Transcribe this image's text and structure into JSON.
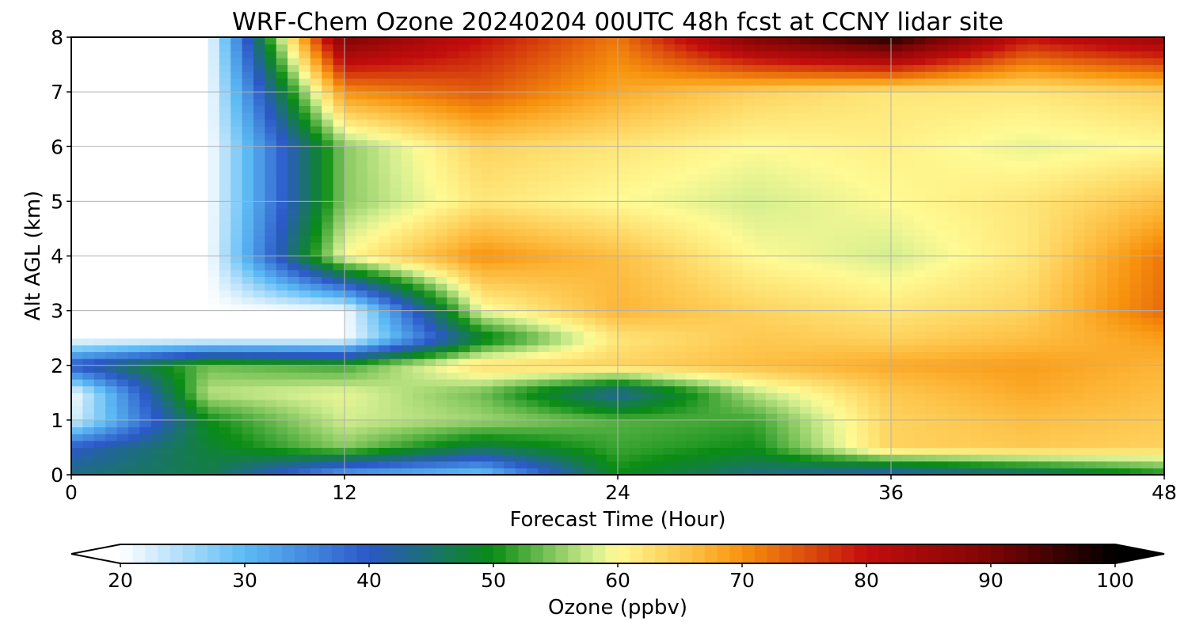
{
  "chart_data": {
    "type": "heatmap",
    "title": "WRF-Chem Ozone  20240204 00UTC 48h fcst at CCNY lidar site",
    "xlabel": "Forecast Time (Hour)",
    "ylabel": "Alt AGL (km)",
    "xlim": [
      0,
      48
    ],
    "ylim": [
      0,
      8
    ],
    "xticks": [
      0,
      12,
      24,
      36,
      48
    ],
    "yticks": [
      0,
      1,
      2,
      3,
      4,
      5,
      6,
      7,
      8
    ],
    "grid": true,
    "x_hours": [
      0,
      6,
      12,
      18,
      24,
      30,
      36,
      42,
      48
    ],
    "z_km": [
      0,
      0.5,
      1,
      1.5,
      2,
      2.5,
      3,
      4,
      5,
      6,
      7,
      8
    ],
    "values": [
      [
        44,
        47,
        32,
        28,
        50,
        44,
        40,
        44,
        50
      ],
      [
        40,
        48,
        55,
        47,
        52,
        50,
        64,
        65,
        64
      ],
      [
        22,
        50,
        58,
        56,
        53,
        52,
        64,
        66,
        65
      ],
      [
        20,
        57,
        59,
        54,
        42,
        57,
        65,
        68,
        66
      ],
      [
        40,
        54,
        52,
        63,
        64,
        66,
        68,
        69,
        67
      ],
      [
        20,
        20,
        20,
        48,
        62,
        65,
        64,
        66,
        69
      ],
      [
        20,
        20,
        20,
        59,
        67,
        64,
        62,
        64,
        73
      ],
      [
        20,
        20,
        60,
        70,
        66,
        60,
        58,
        62,
        72
      ],
      [
        20,
        20,
        55,
        62,
        60,
        58,
        60,
        62,
        66
      ],
      [
        20,
        20,
        55,
        64,
        62,
        60,
        61,
        59,
        60
      ],
      [
        20,
        20,
        70,
        74,
        68,
        64,
        62,
        62,
        64
      ],
      [
        20,
        20,
        90,
        80,
        72,
        90,
        98,
        80,
        86
      ]
    ],
    "colorbar": {
      "label": "Ozone  (ppbv)",
      "min": 20,
      "max": 100,
      "ticks": [
        20,
        30,
        40,
        50,
        60,
        70,
        80,
        90,
        100
      ],
      "extend": "both",
      "colors": {
        "20": "#ffffff",
        "30": "#5cbbf5",
        "40": "#2b58c8",
        "50": "#0a8c14",
        "58": "#d3ee90",
        "60": "#fffa94",
        "67": "#fdb536",
        "70": "#f7920d",
        "80": "#c30d0d",
        "90": "#7d0505",
        "100": "#000000"
      }
    }
  }
}
